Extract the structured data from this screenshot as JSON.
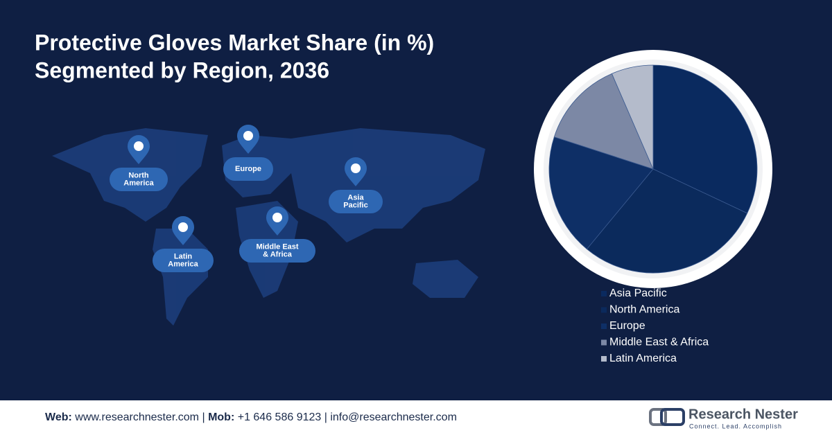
{
  "chart_data": {
    "type": "pie",
    "title": [
      "Protective Gloves Market Share (in %)",
      "Segmented by Region, 2036"
    ],
    "categories": [
      "Asia Pacific",
      "North America",
      "Europe",
      "Middle East & Africa",
      "Latin America"
    ],
    "values": [
      32,
      29,
      19,
      13.5,
      6.5
    ],
    "colors": [
      "#0a2a5f",
      "#0b2a5c",
      "#0e2f66",
      "#7c88a5",
      "#b4bbcb"
    ],
    "map_labels": [
      [
        "North",
        "America"
      ],
      [
        "Europe"
      ],
      [
        "Asia",
        "Pacific"
      ],
      [
        "Latin",
        "America"
      ],
      [
        "Middle East",
        "& Africa"
      ]
    ]
  },
  "footer": {
    "web_label": "Web:",
    "web": "www.researchnester.com",
    "mob_label": "Mob:",
    "mob": "+1 646 586 9123",
    "email": "info@researchnester.com",
    "separator": "|"
  },
  "logo": {
    "name": "Research Nester",
    "tagline": "Connect. Lead. Accomplish"
  }
}
